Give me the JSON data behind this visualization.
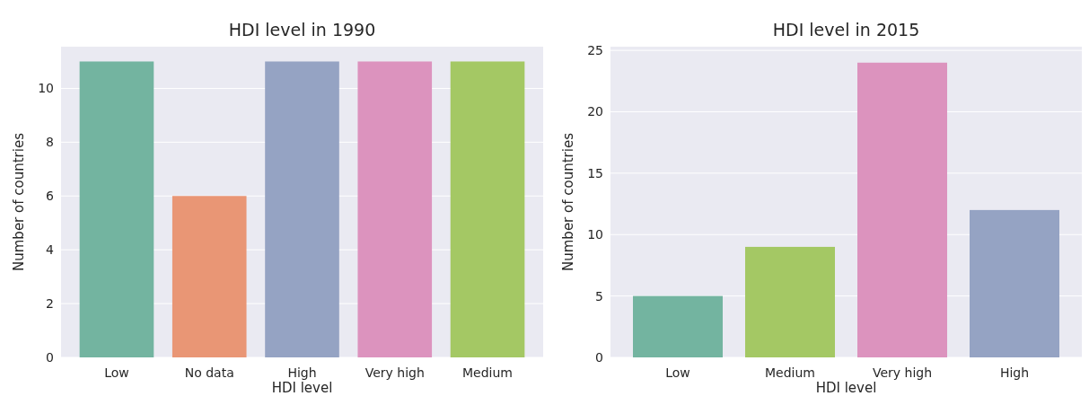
{
  "chart_data": [
    {
      "type": "bar",
      "title": "HDI level in 1990",
      "xlabel": "HDI level",
      "ylabel": "Number of countries",
      "categories": [
        "Low",
        "No data",
        "High",
        "Very high",
        "Medium"
      ],
      "values": [
        11,
        6,
        11,
        11,
        11
      ],
      "colors": [
        "#73b4a0",
        "#e99675",
        "#95a3c3",
        "#dc93be",
        "#a4c864"
      ],
      "ylim": [
        0,
        11.55
      ],
      "yticks": [
        0,
        2,
        4,
        6,
        8,
        10
      ],
      "grid": "y"
    },
    {
      "type": "bar",
      "title": "HDI level in 2015",
      "xlabel": "HDI level",
      "ylabel": "Number of countries",
      "categories": [
        "Low",
        "Medium",
        "Very high",
        "High"
      ],
      "values": [
        5,
        9,
        24,
        12
      ],
      "colors": [
        "#73b4a0",
        "#a4c864",
        "#dc93be",
        "#95a3c3"
      ],
      "ylim": [
        0,
        25.3
      ],
      "yticks": [
        0,
        5,
        10,
        15,
        20,
        25
      ],
      "grid": "y"
    }
  ]
}
